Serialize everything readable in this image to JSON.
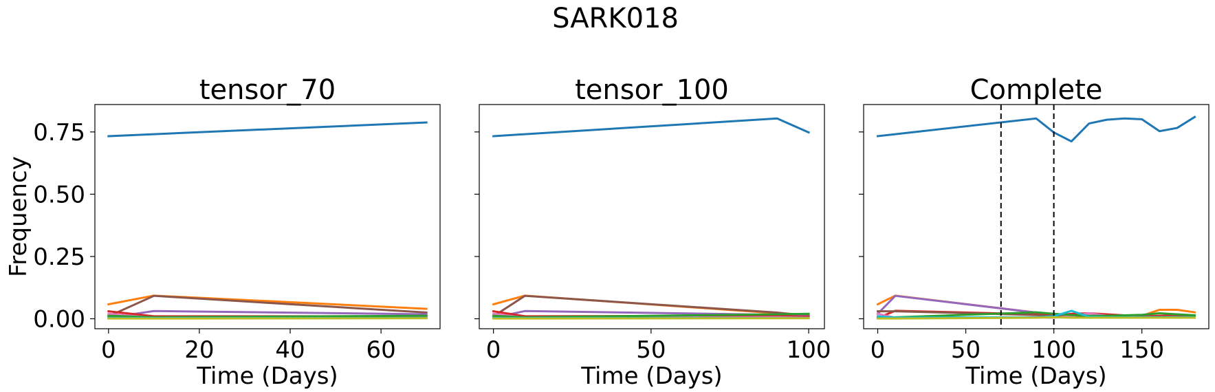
{
  "figure": {
    "suptitle": "SARK018"
  },
  "chart_data": [
    {
      "type": "line",
      "title": "tensor_70",
      "xlabel": "Time (Days)",
      "ylabel": "Frequency",
      "xlim": [
        -3,
        73
      ],
      "ylim": [
        -0.04,
        0.86
      ],
      "xticks": [
        0,
        20,
        40,
        60
      ],
      "yticks": [
        0.0,
        0.25,
        0.5,
        0.75
      ],
      "ytick_labels": [
        "0.00",
        "0.25",
        "0.50",
        "0.75"
      ],
      "vlines": [],
      "x": [
        0,
        10,
        70
      ],
      "series": [
        {
          "color": "#1f77b4",
          "values": [
            0.733,
            0.741,
            0.788
          ]
        },
        {
          "color": "#ff7f0e",
          "values": [
            0.058,
            0.093,
            0.04
          ]
        },
        {
          "color": "#8c564b",
          "values": [
            0.01,
            0.092,
            0.025
          ]
        },
        {
          "color": "#9467bd",
          "values": [
            0.004,
            0.031,
            0.018
          ]
        },
        {
          "color": "#d62728",
          "values": [
            0.03,
            0.01,
            0.01
          ]
        },
        {
          "color": "#e377c2",
          "values": [
            0.02,
            0.004,
            0.006
          ]
        },
        {
          "color": "#2ca02c",
          "values": [
            0.012,
            0.006,
            0.012
          ]
        },
        {
          "color": "#17becf",
          "values": [
            0.003,
            0.003,
            0.003
          ]
        },
        {
          "color": "#bcbd22",
          "values": [
            0.001,
            0.001,
            0.002
          ]
        }
      ]
    },
    {
      "type": "line",
      "title": "tensor_100",
      "xlabel": "Time (Days)",
      "ylabel": "",
      "xlim": [
        -4.5,
        105
      ],
      "ylim": [
        -0.04,
        0.86
      ],
      "xticks": [
        0,
        50,
        100
      ],
      "yticks": [
        0.0,
        0.25,
        0.5,
        0.75
      ],
      "ytick_labels": [],
      "vlines": [],
      "x": [
        0,
        10,
        90,
        100
      ],
      "series": [
        {
          "color": "#1f77b4",
          "values": [
            0.733,
            0.741,
            0.804,
            0.748
          ]
        },
        {
          "color": "#ff7f0e",
          "values": [
            0.058,
            0.093,
            0.022,
            0.012
          ]
        },
        {
          "color": "#8c564b",
          "values": [
            0.01,
            0.092,
            0.025,
            0.012
          ]
        },
        {
          "color": "#9467bd",
          "values": [
            0.004,
            0.031,
            0.016,
            0.01
          ]
        },
        {
          "color": "#d62728",
          "values": [
            0.03,
            0.01,
            0.012,
            0.008
          ]
        },
        {
          "color": "#e377c2",
          "values": [
            0.02,
            0.004,
            0.006,
            0.004
          ]
        },
        {
          "color": "#2ca02c",
          "values": [
            0.012,
            0.006,
            0.018,
            0.02
          ]
        },
        {
          "color": "#17becf",
          "values": [
            0.003,
            0.003,
            0.003,
            0.003
          ]
        },
        {
          "color": "#bcbd22",
          "values": [
            0.001,
            0.001,
            0.002,
            0.002
          ]
        }
      ]
    },
    {
      "type": "line",
      "title": "Complete",
      "xlabel": "Time (Days)",
      "ylabel": "",
      "xlim": [
        -8,
        188
      ],
      "ylim": [
        -0.04,
        0.86
      ],
      "xticks": [
        0,
        50,
        100,
        150
      ],
      "yticks": [
        0.0,
        0.25,
        0.5,
        0.75
      ],
      "ytick_labels": [],
      "vlines": [
        70,
        100
      ],
      "x": [
        0,
        10,
        90,
        100,
        110,
        120,
        130,
        140,
        150,
        160,
        170,
        180
      ],
      "series": [
        {
          "color": "#1f77b4",
          "values": [
            0.733,
            0.741,
            0.804,
            0.748,
            0.712,
            0.784,
            0.799,
            0.804,
            0.801,
            0.753,
            0.766,
            0.81
          ]
        },
        {
          "color": "#ff7f0e",
          "values": [
            0.058,
            0.093,
            0.025,
            0.012,
            0.01,
            0.01,
            0.01,
            0.01,
            0.012,
            0.036,
            0.036,
            0.026
          ]
        },
        {
          "color": "#9467bd",
          "values": [
            0.02,
            0.092,
            0.025,
            0.012,
            0.01,
            0.01,
            0.008,
            0.008,
            0.01,
            0.008,
            0.01,
            0.012
          ]
        },
        {
          "color": "#d62728",
          "values": [
            0.003,
            0.032,
            0.018,
            0.012,
            0.02,
            0.022,
            0.018,
            0.014,
            0.01,
            0.012,
            0.014,
            0.01
          ]
        },
        {
          "color": "#8c564b",
          "values": [
            0.03,
            0.03,
            0.015,
            0.01,
            0.008,
            0.008,
            0.008,
            0.008,
            0.008,
            0.008,
            0.008,
            0.008
          ]
        },
        {
          "color": "#e377c2",
          "values": [
            0.02,
            0.004,
            0.006,
            0.004,
            0.01,
            0.022,
            0.012,
            0.008,
            0.006,
            0.006,
            0.006,
            0.004
          ]
        },
        {
          "color": "#2ca02c",
          "values": [
            0.005,
            0.006,
            0.026,
            0.02,
            0.015,
            0.012,
            0.012,
            0.014,
            0.016,
            0.022,
            0.018,
            0.014
          ]
        },
        {
          "color": "#17becf",
          "values": [
            0.01,
            0.005,
            0.006,
            0.01,
            0.032,
            0.008,
            0.006,
            0.006,
            0.006,
            0.006,
            0.006,
            0.006
          ]
        },
        {
          "color": "#bcbd22",
          "values": [
            0.001,
            0.001,
            0.004,
            0.006,
            0.004,
            0.004,
            0.004,
            0.004,
            0.004,
            0.004,
            0.004,
            0.004
          ]
        }
      ]
    }
  ]
}
